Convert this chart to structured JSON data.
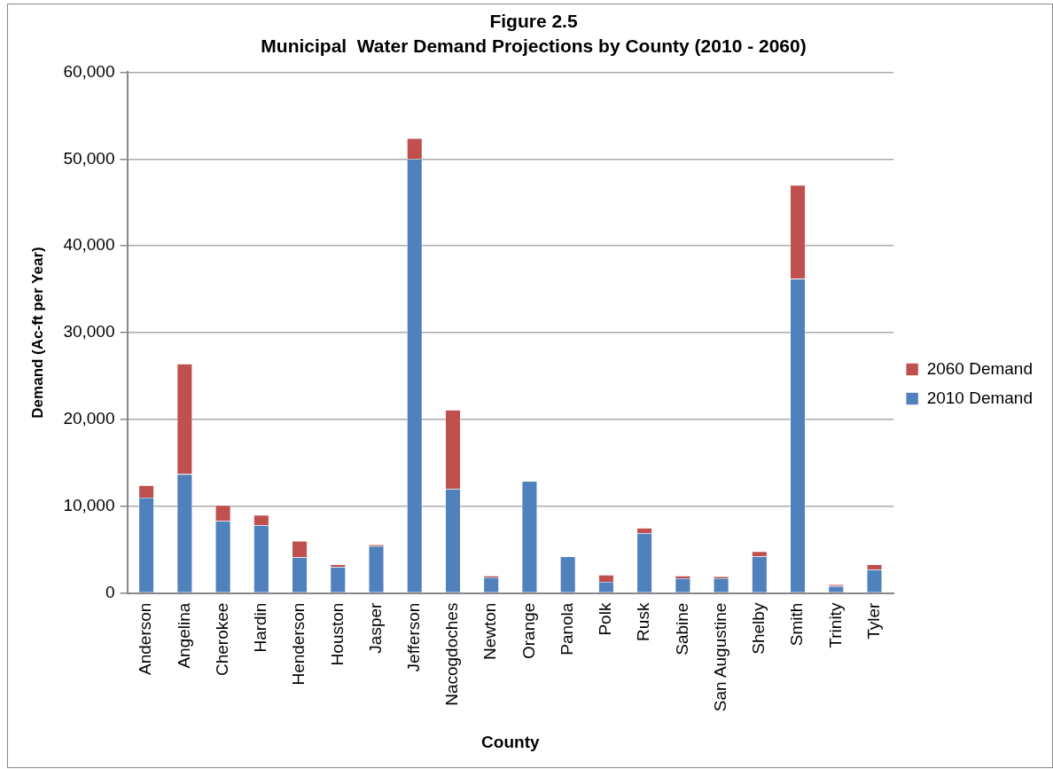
{
  "chart_data": {
    "type": "bar",
    "title": "Figure 2.5",
    "subtitle": "Municipal  Water Demand Projections by County (2010 - 2060)",
    "xlabel": "County",
    "ylabel": "Demand (Ac-ft per Year)",
    "categories": [
      "Anderson",
      "Angelina",
      "Cherokee",
      "Hardin",
      "Henderson",
      "Houston",
      "Jasper",
      "Jefferson",
      "Nacogdoches",
      "Newton",
      "Orange",
      "Panola",
      "Polk",
      "Rusk",
      "Sabine",
      "San Augustine",
      "Shelby",
      "Smith",
      "Trinity",
      "Tyler"
    ],
    "series": [
      {
        "name": "2010 Demand",
        "color": "#4f81bd",
        "values": [
          11000,
          13700,
          8300,
          7800,
          4100,
          3000,
          5400,
          50000,
          12000,
          1800,
          12900,
          4200,
          1300,
          6900,
          1700,
          1700,
          4200,
          36200,
          800,
          2700
        ]
      },
      {
        "name": "2060 Demand",
        "color": "#c0504d",
        "values": [
          1400,
          12700,
          1800,
          1200,
          1900,
          300,
          200,
          2400,
          9100,
          200,
          null,
          0,
          800,
          600,
          300,
          200,
          600,
          10800,
          200,
          600
        ]
      }
    ],
    "stacked": true,
    "ylim": [
      0,
      60000
    ],
    "yticks": [
      0,
      {
        "value": 10000,
        "label": "10,000"
      },
      {
        "value": 20000,
        "label": "20,000"
      },
      {
        "value": 30000,
        "label": "30,000"
      },
      {
        "value": 40000,
        "label": "40,000"
      },
      {
        "value": 50000,
        "label": "50,000"
      },
      {
        "value": 60000,
        "label": "60,000"
      }
    ],
    "grid": "y",
    "legend": "right"
  }
}
